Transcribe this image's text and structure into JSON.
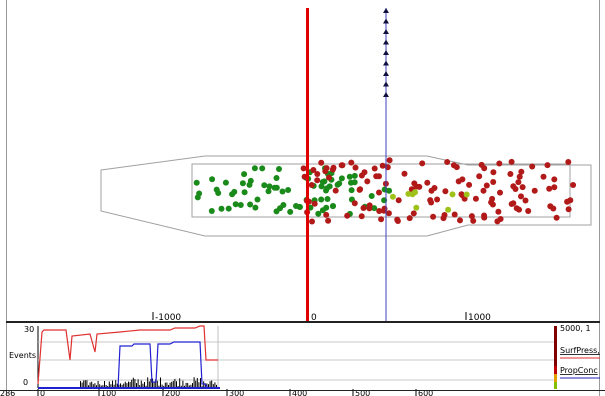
{
  "main_plot": {
    "x_ticks": [
      "-1000",
      "0",
      "1000"
    ],
    "colors": {
      "red_marker": "#e00000",
      "blue_marker": "#3a3ab0",
      "dot_green": "#1a8a1a",
      "dot_red": "#b21a1a",
      "dot_yellow": "#9ec21a",
      "outline": "#9a9a9a"
    }
  },
  "timeline": {
    "y_max": "30",
    "y_min": "0",
    "y_label": "Events",
    "x_ticks": [
      "286",
      "0",
      "100",
      "200",
      "300",
      "400",
      "500",
      "600"
    ],
    "readout": "5000,  1",
    "legend": [
      {
        "label": "SurfPress,",
        "color": "#e03030"
      },
      {
        "label": "PropConc",
        "color": "#2020c0"
      }
    ],
    "scale_colors": [
      "#800000",
      "#c00000",
      "#e0a000",
      "#80c000"
    ]
  }
}
